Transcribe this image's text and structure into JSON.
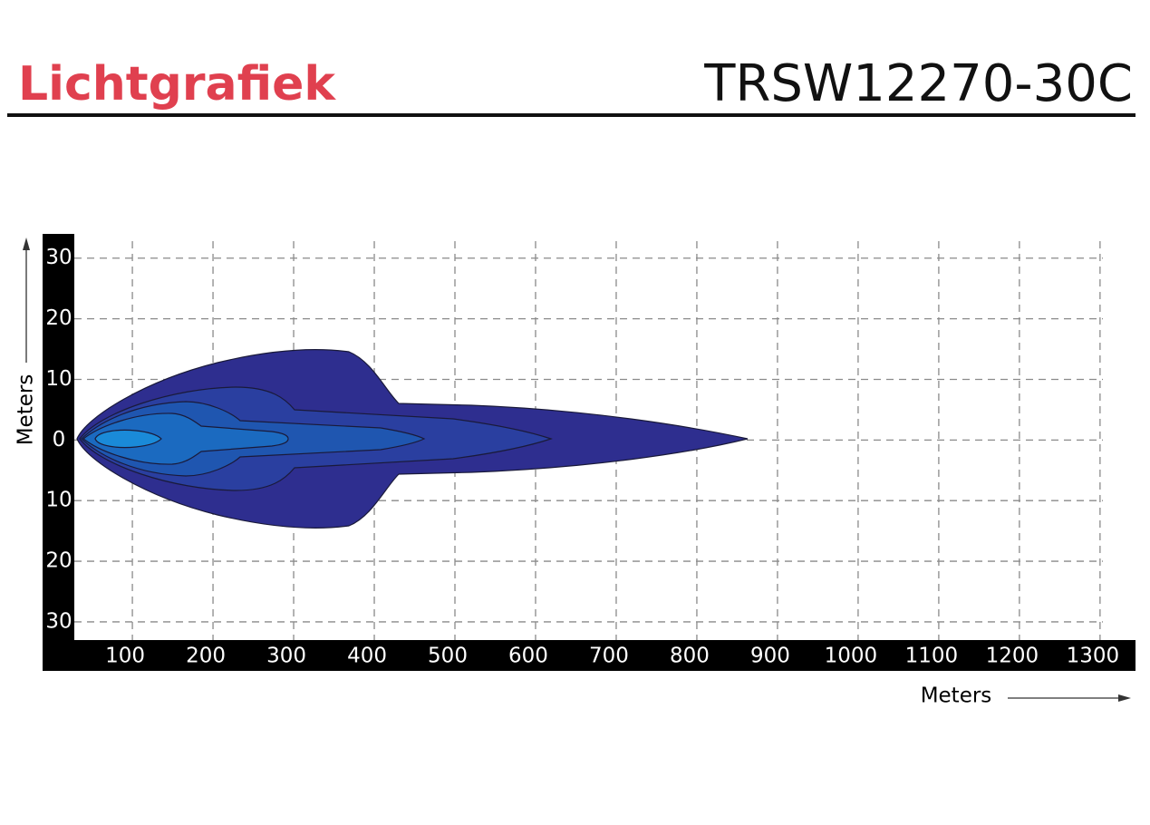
{
  "chart_data": {
    "type": "beam",
    "title": "Lichtgrafiek",
    "subtitle": "TRSW12270-30C",
    "x_label": "Meters",
    "y_label": "Meters",
    "xlim": [
      28,
      1317
    ],
    "ylim": [
      -33,
      34
    ],
    "xticks": [
      100,
      200,
      300,
      400,
      500,
      600,
      700,
      800,
      900,
      1000,
      1100,
      1200,
      1300
    ],
    "yticks": [
      30,
      20,
      10,
      0,
      {
        "value": -10,
        "label": "10"
      },
      {
        "value": -20,
        "label": "20"
      },
      {
        "value": -30,
        "label": "30"
      }
    ],
    "grid": true,
    "colors": [
      "#2e2e8f",
      "#2a3fa0",
      "#1f56b0",
      "#1b6ac0",
      "#1a8ad8"
    ]
  }
}
